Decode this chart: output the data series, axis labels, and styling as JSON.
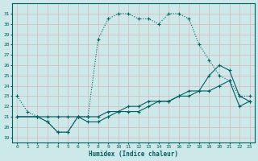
{
  "xlabel": "Humidex (Indice chaleur)",
  "bg_color": "#cce8e8",
  "grid_color": "#b0d0d0",
  "line_color": "#006060",
  "xlim": [
    -0.5,
    23.5
  ],
  "ylim": [
    18.5,
    32
  ],
  "yticks": [
    19,
    20,
    21,
    22,
    23,
    24,
    25,
    26,
    27,
    28,
    29,
    30,
    31
  ],
  "xticks": [
    0,
    1,
    2,
    3,
    4,
    5,
    6,
    7,
    8,
    9,
    10,
    11,
    12,
    13,
    14,
    15,
    16,
    17,
    18,
    19,
    20,
    21,
    22,
    23
  ],
  "line1_x": [
    0,
    1,
    2,
    3,
    4,
    5,
    6,
    7,
    8,
    9,
    10,
    11,
    12,
    13,
    14,
    15,
    16,
    17,
    18,
    19,
    20,
    21,
    22,
    23
  ],
  "line1_y": [
    23,
    21.5,
    21,
    20.5,
    19.5,
    19.5,
    21,
    21,
    28.5,
    30.5,
    31,
    31,
    30.5,
    30.5,
    30,
    31,
    31,
    30.5,
    28,
    26.5,
    25,
    24.5,
    23,
    23
  ],
  "line2_x": [
    0,
    2,
    3,
    4,
    5,
    6,
    7,
    8,
    9,
    10,
    11,
    12,
    13,
    14,
    15,
    16,
    17,
    18,
    19,
    20,
    21,
    22,
    23
  ],
  "line2_y": [
    21,
    21,
    20.5,
    19.5,
    19.5,
    21,
    20.5,
    20.5,
    21,
    21.5,
    21.5,
    21.5,
    22,
    22.5,
    22.5,
    23,
    23.5,
    23.5,
    25,
    26,
    25.5,
    23,
    22.5
  ],
  "line3_x": [
    0,
    2,
    3,
    4,
    5,
    6,
    7,
    8,
    9,
    10,
    11,
    12,
    13,
    14,
    15,
    16,
    17,
    18,
    19,
    20,
    21,
    22,
    23
  ],
  "line3_y": [
    21,
    21,
    21,
    21,
    21,
    21,
    21,
    21,
    21.5,
    21.5,
    22,
    22,
    22.5,
    22.5,
    22.5,
    23,
    23,
    23.5,
    23.5,
    24,
    24.5,
    22,
    22.5
  ]
}
